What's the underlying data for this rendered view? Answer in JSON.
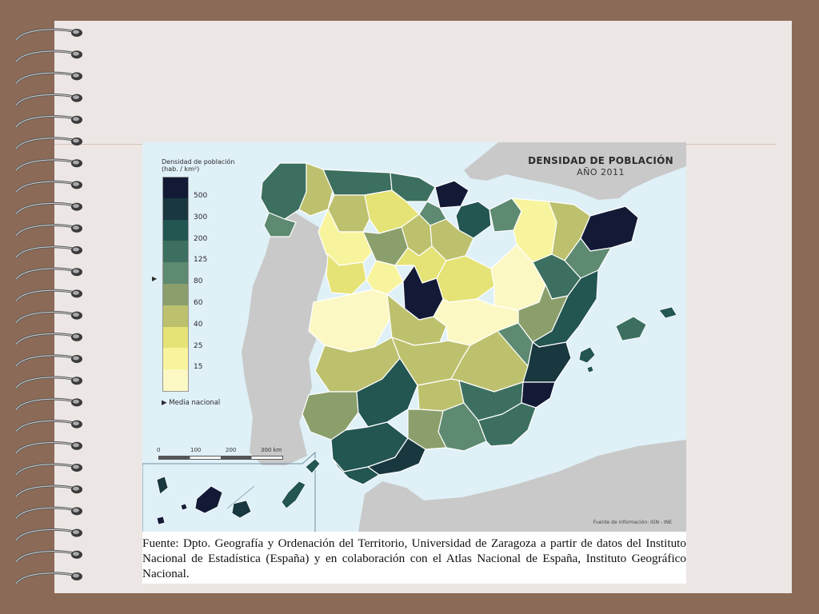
{
  "map": {
    "title": "DENSIDAD DE POBLACIÓN",
    "subtitle": "AÑO 2011",
    "legend": {
      "title_line1": "Densidad de población",
      "title_line2": "(hab. / km²)",
      "national_mean_label": "Media nacional",
      "national_mean_marker": "▶",
      "classes": [
        {
          "label": "500",
          "color": "#121a36"
        },
        {
          "label": "300",
          "color": "#18373f"
        },
        {
          "label": "200",
          "color": "#235551"
        },
        {
          "label": "125",
          "color": "#3c6f5f"
        },
        {
          "label": "80",
          "color": "#5d8a70"
        },
        {
          "label": "60",
          "color": "#8b9f6c"
        },
        {
          "label": "40",
          "color": "#bdc16d"
        },
        {
          "label": "25",
          "color": "#e5e376"
        },
        {
          "label": "15",
          "color": "#f8f49d"
        },
        {
          "label": "",
          "color": "#fcf8c4"
        }
      ]
    },
    "scale": {
      "t0": "0",
      "t1": "100",
      "t2": "200",
      "t3": "300 km"
    },
    "source_note": "Fuente de información: IGN - INE",
    "colors": {
      "sea": "#dff0f7",
      "neighbour_land": "#c9c9c9"
    }
  },
  "caption": "Fuente: Dpto. Geografía y Ordenación del Territorio, Universidad de Zaragoza a partir de datos del Instituto Nacional de Estadística (España) y en colaboración con el Atlas Nacional de España, Instituto Geográfico Nacional."
}
